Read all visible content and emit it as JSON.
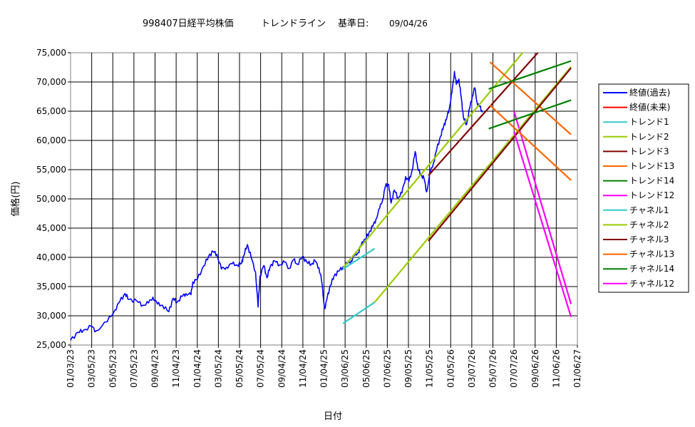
{
  "chart_data": {
    "type": "line",
    "title": {
      "code": "998407日経平均株価",
      "subtitle": "トレンドライン",
      "base_label": "基準日:",
      "base_date": "09/04/26"
    },
    "xlabel": "日付",
    "ylabel": "価格(円)",
    "ylim": [
      25000,
      75000
    ],
    "yticks": [
      25000,
      30000,
      35000,
      40000,
      45000,
      50000,
      55000,
      60000,
      65000,
      70000,
      75000
    ],
    "ytick_labels": [
      "25,000",
      "30,000",
      "35,000",
      "40,000",
      "45,000",
      "50,000",
      "55,000",
      "60,000",
      "65,000",
      "70,000",
      "75,000"
    ],
    "xlim": [
      "01/03/23",
      "01/06/27"
    ],
    "xtick_labels": [
      "01/03/23",
      "03/05/23",
      "05/05/23",
      "07/05/23",
      "09/04/23",
      "11/04/23",
      "01/04/24",
      "03/05/24",
      "05/05/24",
      "07/05/24",
      "09/04/24",
      "11/04/24",
      "01/04/25",
      "03/06/25",
      "05/06/25",
      "07/06/25",
      "09/05/25",
      "11/05/25",
      "01/05/26",
      "03/07/26",
      "05/07/26",
      "07/07/26",
      "09/06/26",
      "11/06/26",
      "01/06/27"
    ],
    "grid": true,
    "legend_position": "right",
    "series": [
      {
        "name": "終値(過去)",
        "color": "#0000ff",
        "kind": "price",
        "points": [
          [
            0,
            25800
          ],
          [
            1.2,
            27200
          ],
          [
            2,
            27500
          ],
          [
            3.3,
            28200
          ],
          [
            4,
            27400
          ],
          [
            5.8,
            29000
          ],
          [
            7,
            31000
          ],
          [
            7.8,
            32500
          ],
          [
            8.6,
            33800
          ],
          [
            9.2,
            32800
          ],
          [
            10.5,
            32500
          ],
          [
            11.4,
            31800
          ],
          [
            12.3,
            32200
          ],
          [
            13,
            33200
          ],
          [
            13.7,
            32000
          ],
          [
            14.5,
            31800
          ],
          [
            15.5,
            30700
          ],
          [
            16.2,
            33000
          ],
          [
            16.8,
            32300
          ],
          [
            17.6,
            33300
          ],
          [
            18.2,
            33800
          ],
          [
            19,
            33600
          ],
          [
            19.3,
            35800
          ],
          [
            20,
            36200
          ],
          [
            21,
            38500
          ],
          [
            21.8,
            40200
          ],
          [
            22.5,
            41000
          ],
          [
            23.1,
            40500
          ],
          [
            23.8,
            38000
          ],
          [
            24.6,
            38300
          ],
          [
            25.5,
            38900
          ],
          [
            26.3,
            38700
          ],
          [
            27,
            39000
          ],
          [
            27.3,
            40200
          ],
          [
            27.9,
            42200
          ],
          [
            28.5,
            40000
          ],
          [
            29.2,
            37500
          ],
          [
            29.6,
            31500
          ],
          [
            29.9,
            36800
          ],
          [
            30.5,
            38600
          ],
          [
            31,
            36500
          ],
          [
            31.5,
            38400
          ],
          [
            32.2,
            39400
          ],
          [
            33,
            38700
          ],
          [
            33.8,
            39200
          ],
          [
            34.5,
            38100
          ],
          [
            35.2,
            39600
          ],
          [
            35.8,
            38800
          ],
          [
            36.6,
            40100
          ],
          [
            37.3,
            39200
          ],
          [
            38,
            38800
          ],
          [
            38.6,
            39400
          ],
          [
            39.2,
            38200
          ],
          [
            39.6,
            36200
          ],
          [
            40.1,
            31200
          ],
          [
            40.5,
            33000
          ],
          [
            41,
            35200
          ],
          [
            41.6,
            36800
          ],
          [
            42.3,
            37600
          ],
          [
            43,
            38400
          ],
          [
            43.7,
            38900
          ],
          [
            44.3,
            39400
          ],
          [
            44.8,
            40300
          ],
          [
            45.4,
            40800
          ],
          [
            45.9,
            42200
          ],
          [
            46.5,
            43100
          ],
          [
            47.1,
            44200
          ],
          [
            47.7,
            45300
          ],
          [
            48.2,
            46500
          ],
          [
            48.8,
            48400
          ],
          [
            49.3,
            50000
          ],
          [
            49.7,
            52200
          ],
          [
            50.2,
            52500
          ],
          [
            50.6,
            49300
          ],
          [
            51.1,
            51500
          ],
          [
            51.7,
            50200
          ],
          [
            52.3,
            51000
          ],
          [
            52.9,
            53800
          ],
          [
            53.4,
            53000
          ],
          [
            53.9,
            54800
          ],
          [
            54.4,
            58100
          ],
          [
            54.8,
            55300
          ],
          [
            55.3,
            54100
          ],
          [
            55.8,
            53500
          ],
          [
            56.2,
            51200
          ],
          [
            56.8,
            54600
          ],
          [
            57.3,
            56200
          ],
          [
            57.8,
            58500
          ],
          [
            58.4,
            60700
          ],
          [
            58.9,
            62500
          ],
          [
            59.3,
            63500
          ],
          [
            59.8,
            65600
          ],
          [
            60.2,
            68200
          ],
          [
            60.6,
            71800
          ],
          [
            60.9,
            69600
          ],
          [
            61.3,
            70500
          ],
          [
            61.7,
            67000
          ],
          [
            62,
            64000
          ],
          [
            62.5,
            62700
          ],
          [
            63,
            65500
          ],
          [
            63.4,
            67500
          ],
          [
            63.8,
            69000
          ],
          [
            64.2,
            66300
          ],
          [
            64.6,
            65800
          ],
          [
            65,
            64800
          ]
        ]
      },
      {
        "name": "終値(未来)",
        "color": "#ff0000",
        "kind": "line",
        "points": []
      },
      {
        "name": "トレンド1",
        "color": "#33cccc",
        "kind": "line",
        "points": [
          [
            43,
            38000
          ],
          [
            48,
            41500
          ]
        ]
      },
      {
        "name": "トレンド2",
        "color": "#99cc00",
        "kind": "line",
        "points": [
          [
            43,
            38200
          ],
          [
            71.5,
            75200
          ]
        ]
      },
      {
        "name": "トレンド3",
        "color": "#800000",
        "kind": "line",
        "points": [
          [
            56.5,
            54000
          ],
          [
            74,
            75300
          ]
        ]
      },
      {
        "name": "トレンド13",
        "color": "#ff6600",
        "kind": "line",
        "points": [
          [
            66.2,
            73400
          ],
          [
            79,
            61000
          ]
        ]
      },
      {
        "name": "トレンド14",
        "color": "#008000",
        "kind": "line",
        "points": [
          [
            66,
            68800
          ],
          [
            79,
            73600
          ]
        ]
      },
      {
        "name": "トレンド12",
        "color": "#ff00ff",
        "kind": "line",
        "points": [
          [
            70,
            65000
          ],
          [
            79,
            32000
          ]
        ]
      },
      {
        "name": "チャネル1",
        "color": "#33cccc",
        "kind": "line",
        "points": [
          [
            43,
            28700
          ],
          [
            48,
            32300
          ]
        ]
      },
      {
        "name": "チャネル2",
        "color": "#99cc00",
        "kind": "line",
        "points": [
          [
            48,
            32300
          ],
          [
            79,
            72600
          ]
        ]
      },
      {
        "name": "チャネル3",
        "color": "#800000",
        "kind": "line",
        "points": [
          [
            56.5,
            42800
          ],
          [
            79,
            72400
          ]
        ]
      },
      {
        "name": "チャネル13",
        "color": "#ff6600",
        "kind": "line",
        "points": [
          [
            66.2,
            66000
          ],
          [
            79,
            53200
          ]
        ]
      },
      {
        "name": "チャネル14",
        "color": "#008000",
        "kind": "line",
        "points": [
          [
            66,
            62000
          ],
          [
            79,
            66900
          ]
        ]
      },
      {
        "name": "チャネル12",
        "color": "#ff00ff",
        "kind": "line",
        "points": [
          [
            70,
            61500
          ],
          [
            79,
            29800
          ]
        ]
      }
    ]
  }
}
